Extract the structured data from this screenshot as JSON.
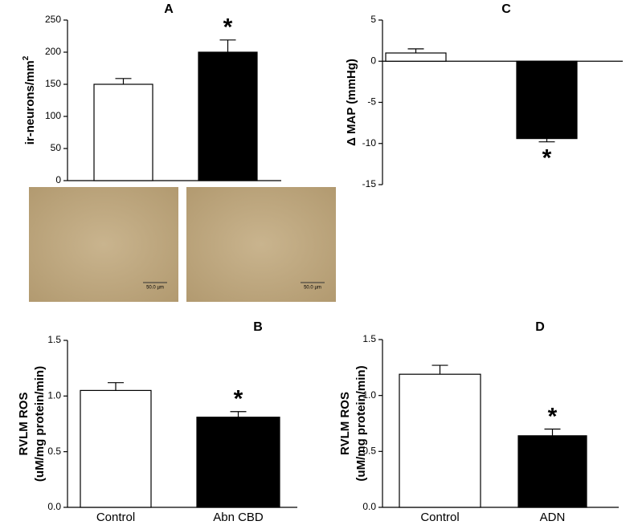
{
  "chart_data": [
    {
      "type": "bar",
      "title": "A",
      "ylabel": "ir-neurons/mm",
      "ylabel_sup": "2",
      "values": [
        150,
        200
      ],
      "errors": [
        9,
        19
      ],
      "significance": [
        null,
        "*"
      ],
      "colors": [
        "#ffffff",
        "#000000"
      ],
      "ylim": [
        0,
        250
      ],
      "yticks": [
        0,
        50,
        100,
        150,
        200,
        250
      ]
    },
    {
      "type": "bar",
      "title": "B",
      "ylabel": [
        "RVLM ROS",
        "(uM/mg protein/min)"
      ],
      "categories": [
        "Control",
        "Abn CBD"
      ],
      "values": [
        1.05,
        0.81
      ],
      "errors": [
        0.07,
        0.05
      ],
      "significance": [
        null,
        "*"
      ],
      "colors": [
        "#ffffff",
        "#000000"
      ],
      "ylim": [
        0,
        1.5
      ],
      "yticks": [
        {
          "value": 0,
          "label": "0.0"
        },
        {
          "value": 0.5,
          "label": "0.5"
        },
        {
          "value": 1,
          "label": "1.0"
        },
        {
          "value": 1.5,
          "label": "1.5"
        }
      ]
    },
    {
      "type": "bar",
      "title": "C",
      "ylabel": "Δ MAP (mmHg)",
      "values": [
        1,
        -9.4
      ],
      "errors": [
        0.5,
        0.4
      ],
      "significance": [
        null,
        "*"
      ],
      "colors": [
        "#ffffff",
        "#000000"
      ],
      "ylim": [
        -15,
        5
      ],
      "yticks": [
        -15,
        -10,
        -5,
        0,
        5
      ]
    },
    {
      "type": "bar",
      "title": "D",
      "ylabel": [
        "RVLM ROS",
        "(uM/mg protein/min)"
      ],
      "categories": [
        "Control",
        "ADN"
      ],
      "values": [
        1.19,
        0.64
      ],
      "errors": [
        0.08,
        0.06
      ],
      "significance": [
        null,
        "*"
      ],
      "colors": [
        "#ffffff",
        "#000000"
      ],
      "ylim": [
        0,
        1.5
      ],
      "yticks": [
        {
          "value": 0,
          "label": "0.0"
        },
        {
          "value": 0.5,
          "label": "0.5"
        },
        {
          "value": 1,
          "label": "1.0"
        },
        {
          "value": 1.5,
          "label": "1.5"
        }
      ]
    }
  ],
  "micrographs": [
    {
      "scale_label": "50.0 µm"
    },
    {
      "scale_label": "50.0 µm"
    }
  ]
}
